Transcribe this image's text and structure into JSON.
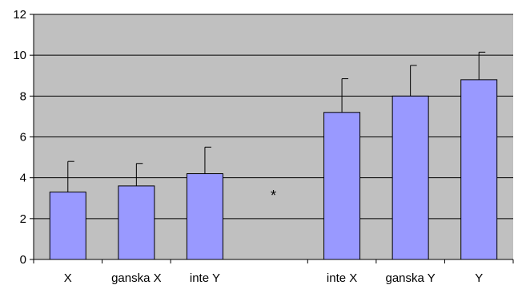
{
  "chart_data": {
    "type": "bar",
    "categories": [
      "X",
      "ganska X",
      "inte Y",
      "inte X",
      "ganska Y",
      "Y"
    ],
    "values": [
      3.3,
      3.6,
      4.2,
      7.2,
      8.0,
      8.8
    ],
    "error_upper": [
      1.5,
      1.1,
      1.3,
      1.65,
      1.5,
      1.35
    ],
    "ylim": [
      0,
      12
    ],
    "yticks": [
      0,
      2,
      4,
      6,
      8,
      10,
      12
    ],
    "grid": true,
    "annotation": {
      "text": "*",
      "between": [
        "inte Y",
        "inte X"
      ]
    },
    "colors": {
      "bar": "#9999ff",
      "plot_background": "#c0c0c0",
      "gridline": "#000000",
      "outline": "#000000"
    },
    "title": "",
    "xlabel": "",
    "ylabel": ""
  }
}
